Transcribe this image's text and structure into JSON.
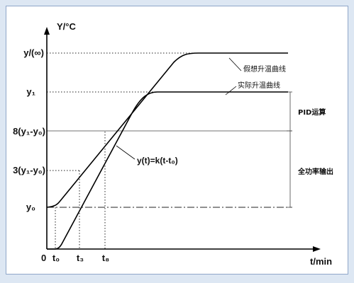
{
  "axes": {
    "y_title": "Y/°C",
    "x_title": "t/min",
    "origin": "0"
  },
  "y_ticks": {
    "y_inf": "y/(∞)",
    "y1": "y₁",
    "y8": "8(y₁-y₀)",
    "y3": "3(y₁-y₀)",
    "y0": "y₀"
  },
  "x_ticks": {
    "t0": "t₀",
    "t3": "t₃",
    "t8": "t₈"
  },
  "curves": {
    "ideal": "假想升温曲线",
    "actual": "实际升温曲线",
    "equation": "y(t)=k(t-t₀)"
  },
  "regions": {
    "pid": "PID运算",
    "full_power": "全功率输出"
  },
  "colors": {
    "background": "#dde7f3",
    "panel": "#ffffff",
    "ink": "#111111"
  }
}
